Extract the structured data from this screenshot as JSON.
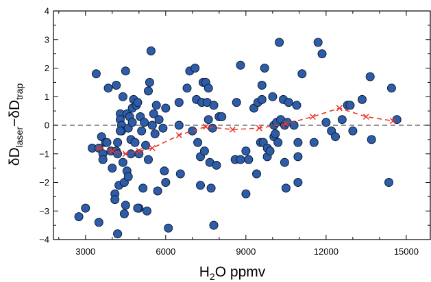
{
  "chart_data": {
    "type": "scatter",
    "title": "",
    "xlabel": {
      "main": "H",
      "sub": "2",
      "rest": "O ppmv"
    },
    "ylabel": {
      "p1": "δD",
      "s1": "laser",
      "p2": "−δD",
      "s2": "trap"
    },
    "xlim": [
      1800,
      15900
    ],
    "ylim": [
      -4,
      4
    ],
    "xticks": [
      3000,
      6000,
      9000,
      12000,
      15000
    ],
    "xtick_labels": [
      "3000",
      "6000",
      "9000",
      "12000",
      "15000"
    ],
    "yticks": [
      -4,
      -3,
      -2,
      -1,
      0,
      1,
      2,
      3,
      4
    ],
    "ytick_labels": [
      "−4",
      "−3",
      "−2",
      "−1",
      "0",
      "1",
      "2",
      "3",
      "4"
    ],
    "grid": false,
    "reference_line_y": 0,
    "colors": {
      "points_fill": "#2e5ca6",
      "points_edge": "#0d1f3a",
      "trend": "#e8362a",
      "reference_line": "#555555"
    },
    "series": [
      {
        "type": "scatter",
        "points": [
          [
            2750,
            -3.2
          ],
          [
            3000,
            -2.9
          ],
          [
            3250,
            -0.8
          ],
          [
            3500,
            -0.8
          ],
          [
            3600,
            -0.4
          ],
          [
            3650,
            -1.0
          ],
          [
            3750,
            -0.6
          ],
          [
            3800,
            -0.6
          ],
          [
            3850,
            1.3
          ],
          [
            3950,
            -0.9
          ],
          [
            3650,
            -1.2
          ],
          [
            4000,
            -1.5
          ],
          [
            4100,
            -2.4
          ],
          [
            4100,
            -2.6
          ],
          [
            4150,
            1.4
          ],
          [
            4150,
            -0.9
          ],
          [
            4200,
            -0.6
          ],
          [
            4200,
            -1.0
          ],
          [
            4250,
            -2.1
          ],
          [
            4300,
            0.4
          ],
          [
            4300,
            0.2
          ],
          [
            4350,
            0.0
          ],
          [
            4350,
            -0.2
          ],
          [
            4400,
            1.0
          ],
          [
            4400,
            -1.3
          ],
          [
            4450,
            -2.0
          ],
          [
            4450,
            -3.1
          ],
          [
            4500,
            -2.8
          ],
          [
            4500,
            1.9
          ],
          [
            4550,
            0.4
          ],
          [
            4550,
            -1.6
          ],
          [
            4600,
            -1.8
          ],
          [
            4600,
            -0.1
          ],
          [
            4650,
            0.3
          ],
          [
            4700,
            -0.5
          ],
          [
            4700,
            -1.0
          ],
          [
            4750,
            0.1
          ],
          [
            4750,
            0.6
          ],
          [
            4800,
            0.9
          ],
          [
            4850,
            -0.6
          ],
          [
            4900,
            0.7
          ],
          [
            4950,
            0.8
          ],
          [
            5000,
            -1.0
          ],
          [
            5000,
            -2.9
          ],
          [
            5050,
            0.3
          ],
          [
            5100,
            -0.2
          ],
          [
            5150,
            -2.2
          ],
          [
            5200,
            0.1
          ],
          [
            5250,
            -0.7
          ],
          [
            5300,
            -3.0
          ],
          [
            5350,
            1.2
          ],
          [
            5350,
            -1.2
          ],
          [
            5400,
            1.5
          ],
          [
            5450,
            2.6
          ],
          [
            5500,
            0.0
          ],
          [
            5550,
            0.4
          ],
          [
            5600,
            -0.3
          ],
          [
            5650,
            0.7
          ],
          [
            5700,
            -2.3
          ],
          [
            5750,
            0.2
          ],
          [
            5900,
            -0.1
          ],
          [
            5950,
            -1.6
          ],
          [
            6000,
            0.6
          ],
          [
            6000,
            -2.0
          ],
          [
            6100,
            -3.6
          ],
          [
            3400,
            1.8
          ],
          [
            3500,
            -3.4
          ],
          [
            4200,
            -3.8
          ],
          [
            4300,
            -0.2
          ],
          [
            4950,
            -2.9
          ],
          [
            6500,
            0.8
          ],
          [
            6500,
            0.0
          ],
          [
            6550,
            -1.7
          ],
          [
            6800,
            1.3
          ],
          [
            6900,
            1.9
          ],
          [
            7000,
            -0.2
          ],
          [
            7100,
            2.0
          ],
          [
            7150,
            0.9
          ],
          [
            7200,
            -0.6
          ],
          [
            7300,
            -1.1
          ],
          [
            7300,
            -2.1
          ],
          [
            7350,
            0.8
          ],
          [
            7400,
            1.5
          ],
          [
            7450,
            -0.9
          ],
          [
            7500,
            1.5
          ],
          [
            7550,
            0.8
          ],
          [
            7600,
            1.3
          ],
          [
            7600,
            0.2
          ],
          [
            7650,
            -1.3
          ],
          [
            7700,
            -2.2
          ],
          [
            7750,
            -0.1
          ],
          [
            7800,
            -3.5
          ],
          [
            7800,
            0.7
          ],
          [
            7900,
            -1.4
          ],
          [
            8000,
            0.3
          ],
          [
            8100,
            0.3
          ],
          [
            8600,
            -1.2
          ],
          [
            8650,
            0.8
          ],
          [
            8800,
            2.1
          ],
          [
            8800,
            -1.2
          ],
          [
            9000,
            -0.9
          ],
          [
            9000,
            -2.4
          ],
          [
            9100,
            -1.2
          ],
          [
            9300,
            0.6
          ],
          [
            9400,
            -1.7
          ],
          [
            9450,
            0.8
          ],
          [
            9550,
            -0.6
          ],
          [
            9600,
            0.9
          ],
          [
            9600,
            1.4
          ],
          [
            9650,
            -0.6
          ],
          [
            9700,
            2.0
          ],
          [
            9800,
            -0.8
          ],
          [
            9800,
            -1.1
          ],
          [
            9900,
            -0.9
          ],
          [
            10000,
            1.0
          ],
          [
            10050,
            -0.4
          ],
          [
            10050,
            0.0
          ],
          [
            10100,
            -0.3
          ],
          [
            10150,
            0.1
          ],
          [
            10200,
            -0.6
          ],
          [
            10250,
            2.9
          ],
          [
            10300,
            0.2
          ],
          [
            10400,
            0.9
          ],
          [
            10450,
            0.0
          ],
          [
            10450,
            -1.3
          ],
          [
            10500,
            -2.2
          ],
          [
            10550,
            0.1
          ],
          [
            10600,
            0.8
          ],
          [
            10800,
            0.0
          ],
          [
            10900,
            0.7
          ],
          [
            10950,
            -0.6
          ],
          [
            10950,
            -1.1
          ],
          [
            10950,
            -2.0
          ],
          [
            11100,
            1.8
          ],
          [
            11550,
            -0.6
          ],
          [
            11700,
            2.9
          ],
          [
            11850,
            2.5
          ],
          [
            12000,
            0.1
          ],
          [
            12200,
            -0.2
          ],
          [
            12350,
            -0.4
          ],
          [
            12600,
            0.2
          ],
          [
            12800,
            0.7
          ],
          [
            12900,
            0.7
          ],
          [
            13000,
            -0.2
          ],
          [
            13350,
            0.9
          ],
          [
            13650,
            1.7
          ],
          [
            13700,
            -0.5
          ],
          [
            14350,
            -2.0
          ],
          [
            14450,
            1.3
          ],
          [
            14650,
            0.2
          ]
        ]
      },
      {
        "type": "line",
        "style": "dashed",
        "marker": "x",
        "points": [
          [
            3500,
            -0.8
          ],
          [
            4000,
            -0.9
          ],
          [
            4500,
            -1.0
          ],
          [
            5000,
            -0.9
          ],
          [
            5500,
            -0.8
          ],
          [
            6500,
            -0.35
          ],
          [
            7500,
            -0.05
          ],
          [
            8500,
            -0.15
          ],
          [
            9500,
            -0.1
          ],
          [
            10500,
            0.05
          ],
          [
            11500,
            0.3
          ],
          [
            12500,
            0.6
          ],
          [
            13500,
            0.3
          ],
          [
            14500,
            0.15
          ]
        ]
      }
    ]
  }
}
